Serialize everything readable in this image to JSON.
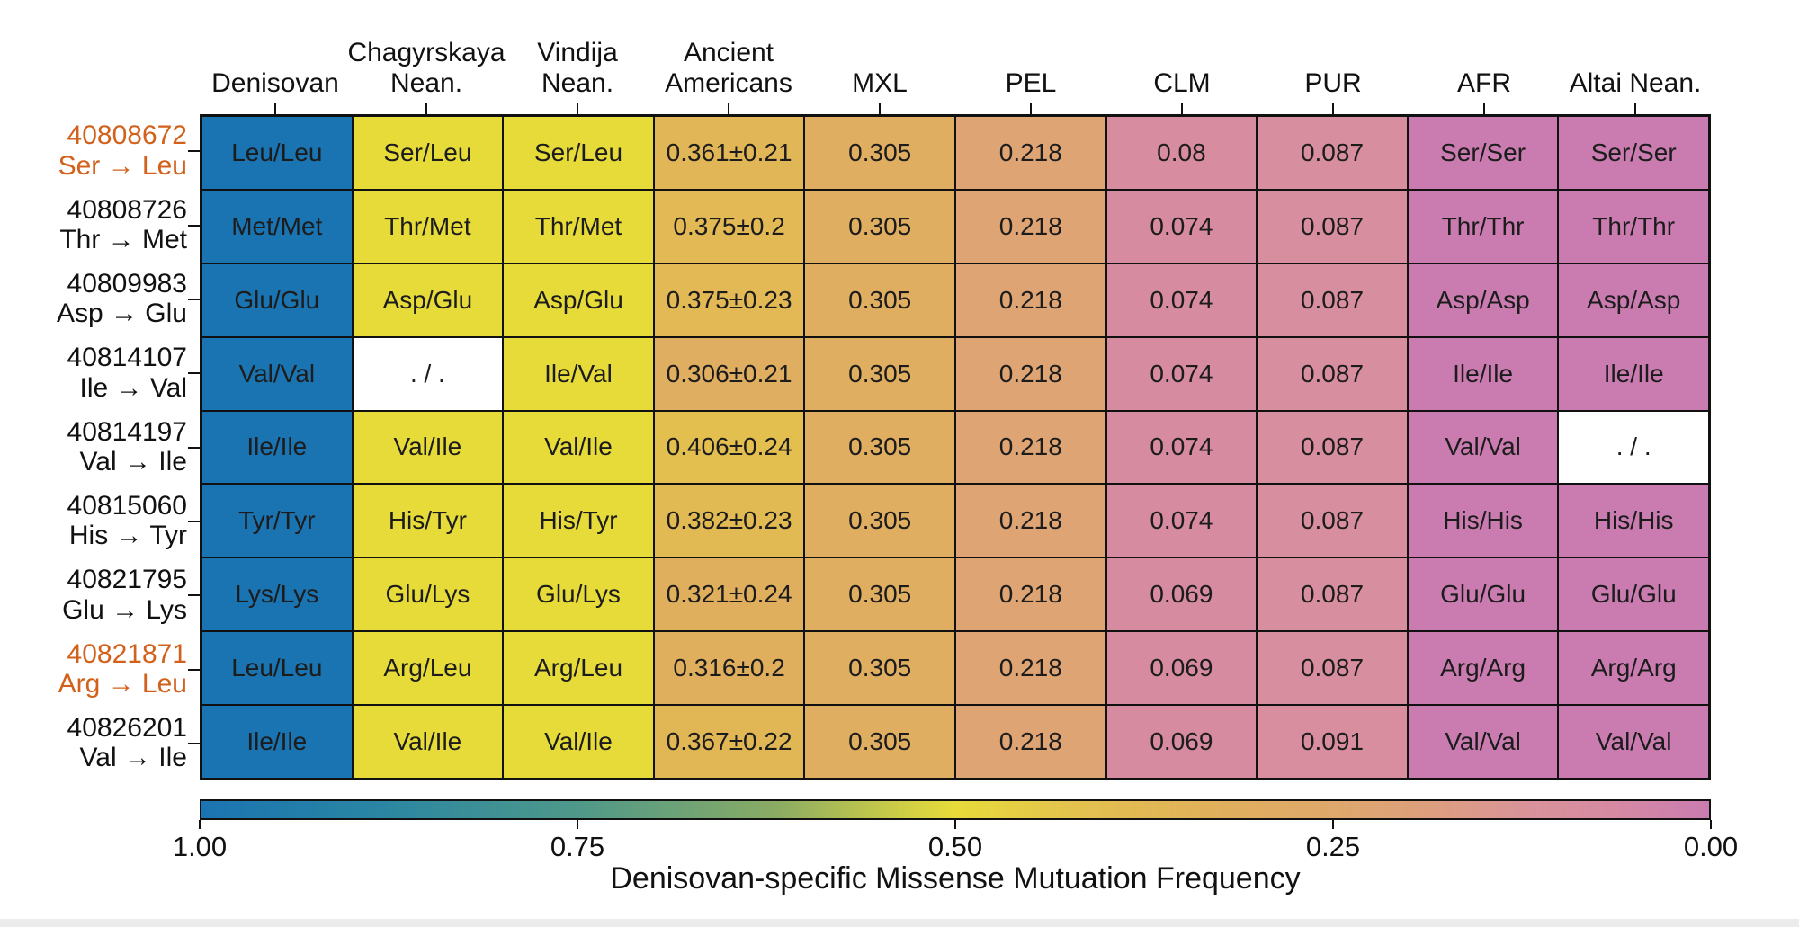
{
  "chart_data": {
    "type": "heatmap",
    "title": "",
    "colorbar": {
      "label": "Denisovan-specific Missense Mutuation Frequency",
      "ticks": [
        "1.00",
        "0.75",
        "0.50",
        "0.25",
        "0.00"
      ],
      "range": [
        1.0,
        0.0
      ]
    },
    "columns": [
      {
        "label": "Denisovan",
        "lines": [
          "Denisovan"
        ]
      },
      {
        "label": "Chagyrskaya Nean.",
        "lines": [
          "Chagyrskaya",
          "Nean."
        ]
      },
      {
        "label": "Vindija Nean.",
        "lines": [
          "Vindija",
          "Nean."
        ]
      },
      {
        "label": "Ancient Americans",
        "lines": [
          "Ancient",
          "Americans"
        ]
      },
      {
        "label": "MXL",
        "lines": [
          "MXL"
        ]
      },
      {
        "label": "PEL",
        "lines": [
          "PEL"
        ]
      },
      {
        "label": "CLM",
        "lines": [
          "CLM"
        ]
      },
      {
        "label": "PUR",
        "lines": [
          "PUR"
        ]
      },
      {
        "label": "AFR",
        "lines": [
          "AFR"
        ]
      },
      {
        "label": "Altai Nean.",
        "lines": [
          "Altai Nean."
        ]
      }
    ],
    "rows": [
      {
        "position": "40808672",
        "change": "Ser → Leu",
        "highlight": true,
        "cells": [
          "Leu/Leu",
          "Ser/Leu",
          "Ser/Leu",
          "0.361±0.21",
          "0.305",
          "0.218",
          "0.08",
          "0.087",
          "Ser/Ser",
          "Ser/Ser"
        ],
        "values": [
          1.0,
          0.5,
          0.5,
          0.361,
          0.305,
          0.218,
          0.08,
          0.087,
          0.0,
          0.0
        ]
      },
      {
        "position": "40808726",
        "change": "Thr → Met",
        "highlight": false,
        "cells": [
          "Met/Met",
          "Thr/Met",
          "Thr/Met",
          "0.375±0.2",
          "0.305",
          "0.218",
          "0.074",
          "0.087",
          "Thr/Thr",
          "Thr/Thr"
        ],
        "values": [
          1.0,
          0.5,
          0.5,
          0.375,
          0.305,
          0.218,
          0.074,
          0.087,
          0.0,
          0.0
        ]
      },
      {
        "position": "40809983",
        "change": "Asp → Glu",
        "highlight": false,
        "cells": [
          "Glu/Glu",
          "Asp/Glu",
          "Asp/Glu",
          "0.375±0.23",
          "0.305",
          "0.218",
          "0.074",
          "0.087",
          "Asp/Asp",
          "Asp/Asp"
        ],
        "values": [
          1.0,
          0.5,
          0.5,
          0.375,
          0.305,
          0.218,
          0.074,
          0.087,
          0.0,
          0.0
        ]
      },
      {
        "position": "40814107",
        "change": "Ile → Val",
        "highlight": false,
        "cells": [
          "Val/Val",
          ". / .",
          "Ile/Val",
          "0.306±0.21",
          "0.305",
          "0.218",
          "0.074",
          "0.087",
          "Ile/Ile",
          "Ile/Ile"
        ],
        "values": [
          1.0,
          null,
          0.5,
          0.306,
          0.305,
          0.218,
          0.074,
          0.087,
          0.0,
          0.0
        ]
      },
      {
        "position": "40814197",
        "change": "Val → Ile",
        "highlight": false,
        "cells": [
          "Ile/Ile",
          "Val/Ile",
          "Val/Ile",
          "0.406±0.24",
          "0.305",
          "0.218",
          "0.074",
          "0.087",
          "Val/Val",
          ". / ."
        ],
        "values": [
          1.0,
          0.5,
          0.5,
          0.406,
          0.305,
          0.218,
          0.074,
          0.087,
          0.0,
          null
        ]
      },
      {
        "position": "40815060",
        "change": "His → Tyr",
        "highlight": false,
        "cells": [
          "Tyr/Tyr",
          "His/Tyr",
          "His/Tyr",
          "0.382±0.23",
          "0.305",
          "0.218",
          "0.074",
          "0.087",
          "His/His",
          "His/His"
        ],
        "values": [
          1.0,
          0.5,
          0.5,
          0.382,
          0.305,
          0.218,
          0.074,
          0.087,
          0.0,
          0.0
        ]
      },
      {
        "position": "40821795",
        "change": "Glu → Lys",
        "highlight": false,
        "cells": [
          "Lys/Lys",
          "Glu/Lys",
          "Glu/Lys",
          "0.321±0.24",
          "0.305",
          "0.218",
          "0.069",
          "0.087",
          "Glu/Glu",
          "Glu/Glu"
        ],
        "values": [
          1.0,
          0.5,
          0.5,
          0.321,
          0.305,
          0.218,
          0.069,
          0.087,
          0.0,
          0.0
        ]
      },
      {
        "position": "40821871",
        "change": "Arg → Leu",
        "highlight": true,
        "cells": [
          "Leu/Leu",
          "Arg/Leu",
          "Arg/Leu",
          "0.316±0.2",
          "0.305",
          "0.218",
          "0.069",
          "0.087",
          "Arg/Arg",
          "Arg/Arg"
        ],
        "values": [
          1.0,
          0.5,
          0.5,
          0.316,
          0.305,
          0.218,
          0.069,
          0.087,
          0.0,
          0.0
        ]
      },
      {
        "position": "40826201",
        "change": "Val → Ile",
        "highlight": false,
        "cells": [
          "Ile/Ile",
          "Val/Ile",
          "Val/Ile",
          "0.367±0.22",
          "0.305",
          "0.218",
          "0.069",
          "0.091",
          "Val/Val",
          "Val/Val"
        ],
        "values": [
          1.0,
          0.5,
          0.5,
          0.367,
          0.305,
          0.218,
          0.069,
          0.091,
          0.0,
          0.0
        ]
      }
    ],
    "colormap": [
      [
        1.0,
        "#1b74b2"
      ],
      [
        0.88,
        "#2a86a2"
      ],
      [
        0.75,
        "#4f998a"
      ],
      [
        0.62,
        "#8aab64"
      ],
      [
        0.55,
        "#c3c84a"
      ],
      [
        0.5,
        "#e7db3a"
      ],
      [
        0.42,
        "#e3c24e"
      ],
      [
        0.33,
        "#e0b05b"
      ],
      [
        0.25,
        "#dfa86c"
      ],
      [
        0.2,
        "#dda178"
      ],
      [
        0.12,
        "#da939a"
      ],
      [
        0.06,
        "#d589a2"
      ],
      [
        0.0,
        "#ca7cb0"
      ]
    ],
    "colors": {
      "missing_cell": "#ffffff",
      "highlight_label": "#d2611b",
      "grid_line": "#111111",
      "cell_text": "#1c1c1c"
    }
  }
}
